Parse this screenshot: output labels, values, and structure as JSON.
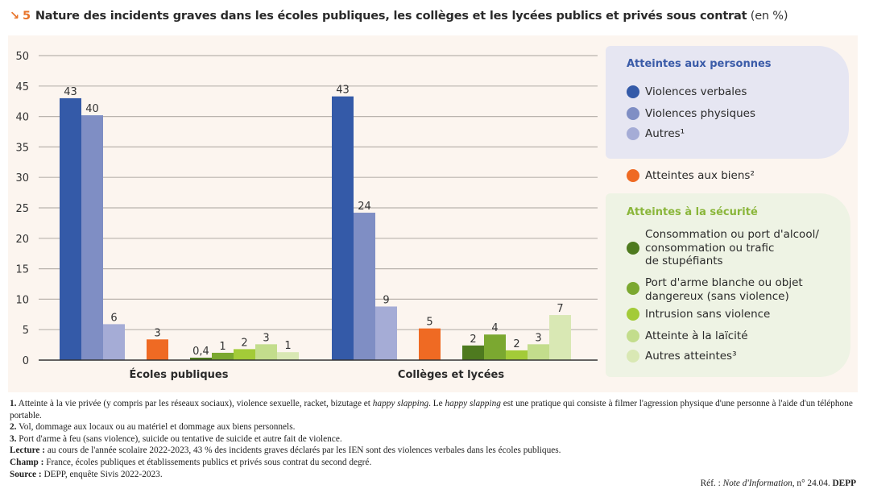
{
  "header": {
    "arrow_icon": "↘",
    "figure_number": "5",
    "title": "Nature des incidents graves dans les écoles publiques, les collèges et les lycées publics et privés sous contrat",
    "unit": "(en %)"
  },
  "legend": {
    "group_personnes": {
      "title": "Atteintes aux personnes",
      "items": [
        "Violences verbales",
        "Violences physiques",
        "Autres¹"
      ]
    },
    "biens": "Atteintes aux biens²",
    "group_securite": {
      "title": "Atteintes à la sécurité",
      "items": [
        [
          "Consommation ou port d'alcool/",
          "consommation ou trafic",
          "de stupéfiants"
        ],
        [
          "Port d'arme blanche ou objet",
          "dangereux (sans violence)"
        ],
        [
          "Intrusion sans violence"
        ],
        [
          "Atteinte à la laïcité"
        ],
        [
          "Autres atteintes³"
        ]
      ]
    }
  },
  "colors": {
    "violences_verbales": "#345aa8",
    "violences_physiques": "#7f8ec4",
    "autres_personnes": "#a5acd6",
    "biens": "#ef6a23",
    "alcool_stupefiants": "#4e7a1f",
    "arme_blanche": "#7ba830",
    "intrusion": "#a3cb38",
    "laicite": "#c3dd8c",
    "autres_atteintes": "#d9e8b4",
    "legend_personnes_title": "#3a5ba8",
    "legend_securite_title": "#8ab63a"
  },
  "chart_data": {
    "type": "bar",
    "title": "Nature des incidents graves dans les écoles publiques, les collèges et les lycées publics et privés sous contrat (en %)",
    "xlabel": "",
    "ylabel": "%",
    "ylim": [
      0,
      50
    ],
    "yticks": [
      0,
      5,
      10,
      15,
      20,
      25,
      30,
      35,
      40,
      45,
      50
    ],
    "grid": true,
    "legend_position": "right",
    "categories": [
      "Écoles publiques",
      "Collèges et lycées"
    ],
    "series": [
      {
        "name": "Violences verbales",
        "group": "Atteintes aux personnes",
        "values": [
          43,
          43.3
        ],
        "labels": [
          "43",
          "43"
        ]
      },
      {
        "name": "Violences physiques",
        "group": "Atteintes aux personnes",
        "values": [
          40.2,
          24.2
        ],
        "labels": [
          "40",
          "24"
        ]
      },
      {
        "name": "Autres¹",
        "group": "Atteintes aux personnes",
        "values": [
          5.9,
          8.8
        ],
        "labels": [
          "6",
          "9"
        ]
      },
      {
        "name": "Atteintes aux biens²",
        "group": "Atteintes aux biens",
        "values": [
          3.4,
          5.2
        ],
        "labels": [
          "3",
          "5"
        ]
      },
      {
        "name": "Consommation ou port d'alcool/consommation ou trafic de stupéfiants",
        "group": "Atteintes à la sécurité",
        "values": [
          0.4,
          2.4
        ],
        "labels": [
          "0,4",
          "2"
        ]
      },
      {
        "name": "Port d'arme blanche ou objet dangereux (sans violence)",
        "group": "Atteintes à la sécurité",
        "values": [
          1.2,
          4.2
        ],
        "labels": [
          "1",
          "4"
        ]
      },
      {
        "name": "Intrusion sans violence",
        "group": "Atteintes à la sécurité",
        "values": [
          1.8,
          1.6
        ],
        "labels": [
          "2",
          "2"
        ]
      },
      {
        "name": "Atteinte à la laïcité",
        "group": "Atteintes à la sécurité",
        "values": [
          2.6,
          2.6
        ],
        "labels": [
          "3",
          "3"
        ]
      },
      {
        "name": "Autres atteintes³",
        "group": "Atteintes à la sécurité",
        "values": [
          1.3,
          7.4
        ],
        "labels": [
          "1",
          "7"
        ]
      }
    ]
  },
  "notes": [
    {
      "bold": "1.",
      "text": " Atteinte à la vie privée (y compris par les réseaux sociaux), violence sexuelle, racket, bizutage et ",
      "italic": "happy slapping",
      "text2": ". Le ",
      "italic2": "happy slapping",
      "text3": " est une pratique qui consiste à filmer l'agression physique d'une personne à l'aide d'un téléphone portable."
    },
    {
      "bold": "2.",
      "text": " Vol, dommage aux locaux ou au matériel et dommage aux biens personnels."
    },
    {
      "bold": "3.",
      "text": " Port d'arme à feu (sans violence), suicide ou tentative de suicide et autre fait de violence."
    },
    {
      "bold": "Lecture :",
      "text": " au cours de l'année scolaire 2022-2023, 43 % des incidents graves déclarés par les IEN sont des violences verbales dans les écoles publiques."
    },
    {
      "bold": "Champ :",
      "text": " France, écoles publiques et établissements publics et privés sous contrat du second degré."
    },
    {
      "bold": "Source :",
      "text": " DEPP, enquête Sivis 2022-2023."
    }
  ],
  "reference": {
    "prefix": "Réf. : ",
    "italic": "Note d'Information",
    "suffix": ", n° 24.04. ",
    "bold": "DEPP"
  }
}
